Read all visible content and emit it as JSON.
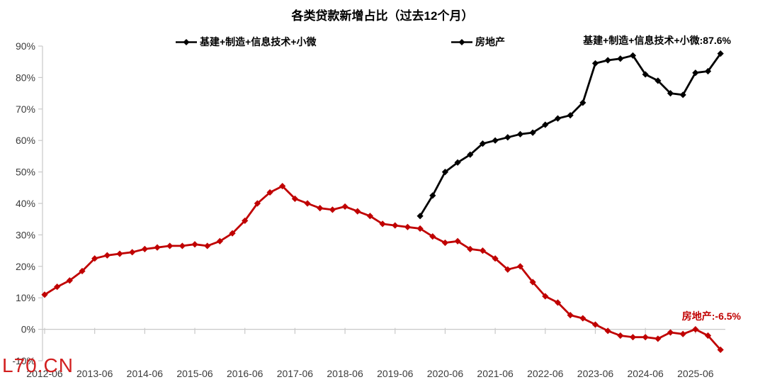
{
  "page": {
    "background": "#ffffff"
  },
  "watermark": {
    "text": "L70.CN",
    "color": "#d21f1f"
  },
  "chart_data": {
    "type": "line",
    "title": "各类贷款新增占比（过去12个月）",
    "xlabel": "",
    "ylabel": "",
    "ylim": [
      -10,
      90
    ],
    "y_tick_labels": [
      "90%",
      "80%",
      "70%",
      "60%",
      "50%",
      "40%",
      "30%",
      "20%",
      "10%",
      "0%",
      "-10%"
    ],
    "x_tick_labels": [
      "2012-06",
      "2013-06",
      "2014-06",
      "2015-06",
      "2016-06",
      "2017-06",
      "2018-06",
      "2019-06",
      "2020-06",
      "2021-06",
      "2022-06",
      "2023-06",
      "2024-06",
      "2025-06"
    ],
    "x_frequency": "quarterly",
    "legend_position": "top",
    "grid": "zero-axis-line-only",
    "axis_color": "#c9c9c9",
    "tick_label_color": "#3c3c3c",
    "categories": [
      "2012-06",
      "2012-09",
      "2012-12",
      "2013-03",
      "2013-06",
      "2013-09",
      "2013-12",
      "2014-03",
      "2014-06",
      "2014-09",
      "2014-12",
      "2015-03",
      "2015-06",
      "2015-09",
      "2015-12",
      "2016-03",
      "2016-06",
      "2016-09",
      "2016-12",
      "2017-03",
      "2017-06",
      "2017-09",
      "2017-12",
      "2018-03",
      "2018-06",
      "2018-09",
      "2018-12",
      "2019-03",
      "2019-06",
      "2019-09",
      "2019-12",
      "2020-03",
      "2020-06",
      "2020-09",
      "2020-12",
      "2021-03",
      "2021-06",
      "2021-09",
      "2021-12",
      "2022-03",
      "2022-06",
      "2022-09",
      "2022-12",
      "2023-03",
      "2023-06",
      "2023-09",
      "2023-12",
      "2024-03",
      "2024-06",
      "2024-09",
      "2024-12",
      "2025-03",
      "2025-06",
      "2025-09",
      "2025-12"
    ],
    "series": [
      {
        "name": "基建+制造+信息技术+小微",
        "color": "#000000",
        "marker": "diamond",
        "start_index": 30,
        "values": [
          36,
          42.5,
          50,
          53,
          55.5,
          59,
          60,
          61,
          62,
          62.5,
          65,
          67,
          68,
          72,
          84.5,
          85.5,
          86,
          87,
          81,
          79,
          75,
          74.5,
          81.5,
          82,
          87.6
        ],
        "end_label": "基建+制造+信息技术+小微:87.6%"
      },
      {
        "name": "房地产",
        "color": "#C00000",
        "marker": "diamond",
        "start_index": 0,
        "values": [
          11,
          13.5,
          15.5,
          18.5,
          22.5,
          23.5,
          24,
          24.5,
          25.5,
          26,
          26.5,
          26.5,
          27,
          26.5,
          28,
          30.5,
          34.5,
          40,
          43.5,
          45.5,
          41.5,
          40,
          38.5,
          38,
          39,
          37.5,
          36,
          33.5,
          33,
          32.5,
          32,
          29.5,
          27.5,
          28,
          25.5,
          25,
          22.5,
          19,
          20,
          15,
          10.5,
          8.5,
          4.5,
          3.5,
          1.5,
          -0.5,
          -2,
          -2.5,
          -2.5,
          -3,
          -1,
          -1.5,
          0,
          -2,
          -6.5
        ],
        "end_label": "房地产:-6.5%"
      }
    ]
  }
}
